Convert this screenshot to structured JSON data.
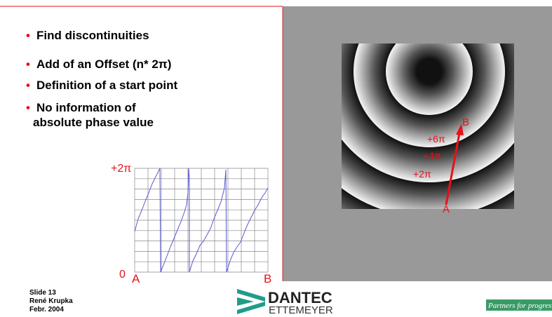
{
  "bullets": [
    "Find discontinuities",
    "Add of an Offset (n* 2π)",
    "Definition of a start point",
    "No information of absolute phase value"
  ],
  "plot": {
    "y_top_label": "+2π",
    "y_bottom_label": "0",
    "x_start_label": "A",
    "x_end_label": "B"
  },
  "image": {
    "labels": [
      "+6π",
      "+4π",
      "+2π"
    ],
    "start_label": "A",
    "end_label": "B"
  },
  "footer": {
    "lines": [
      "Slide 13",
      "René Krupka",
      "Febr. 2004"
    ],
    "logo_top": "DANTEC",
    "logo_bottom": "ETTEMEYER",
    "tagline": "Partners for progres"
  }
}
